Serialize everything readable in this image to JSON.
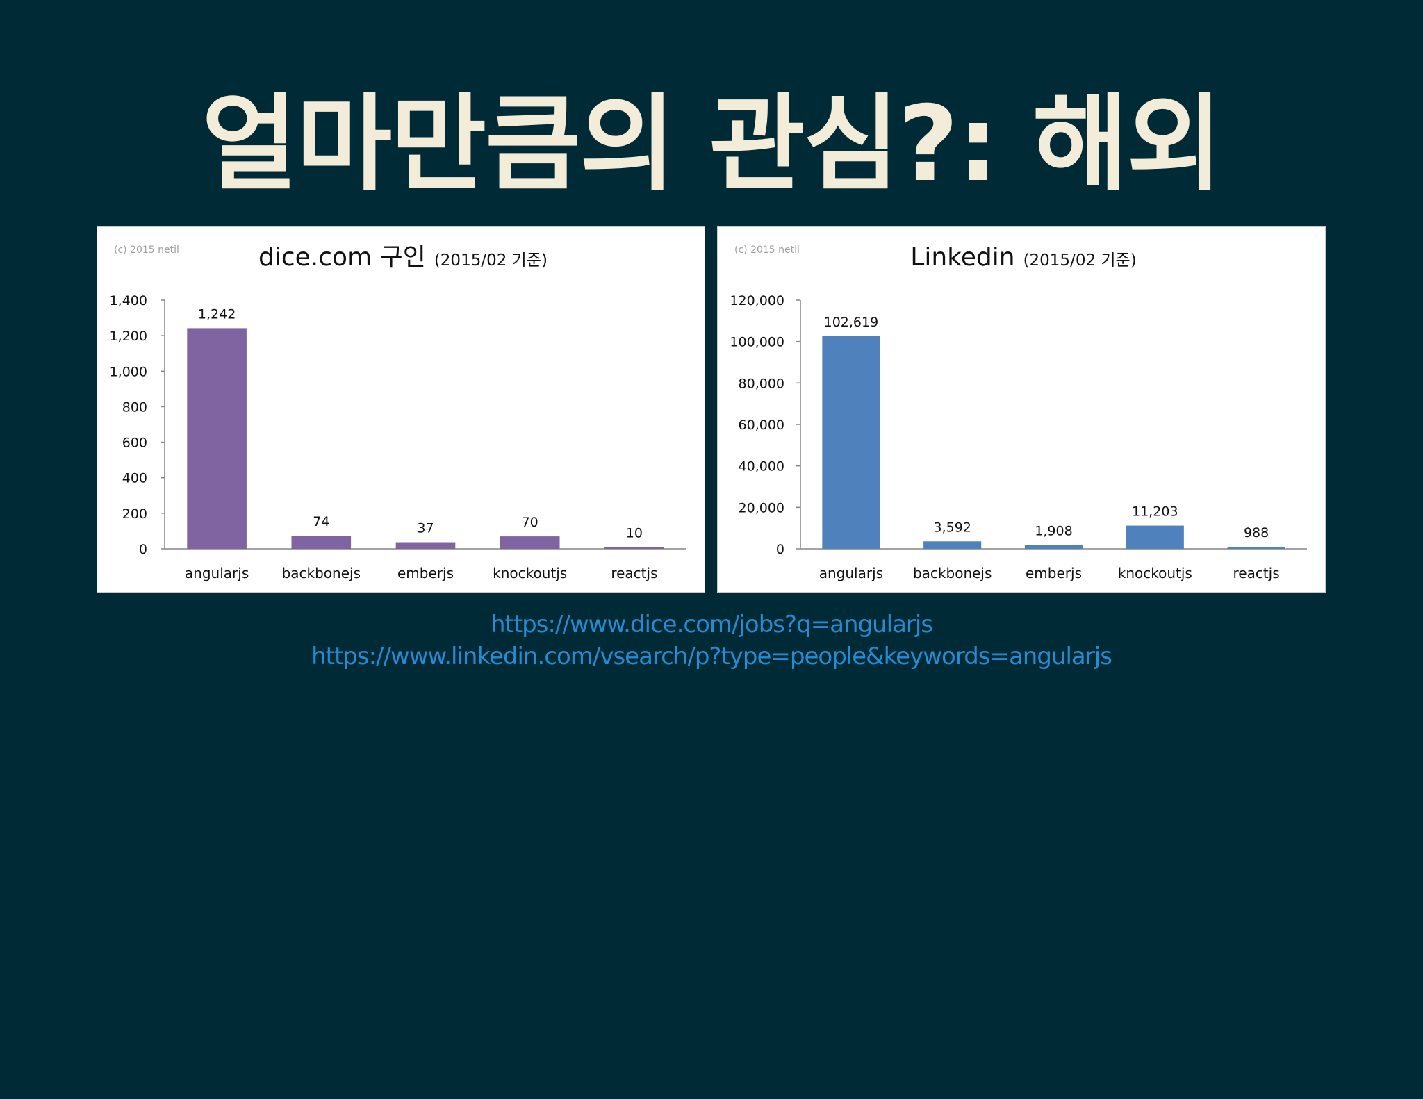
{
  "slide": {
    "title": "얼마만큼의 관심?: 해외"
  },
  "colors": {
    "background": "#002b36",
    "title": "#f3ecd9",
    "link": "#268bd2",
    "dice_bar": "#8064a2",
    "linkedin_bar": "#4f81bd"
  },
  "links": [
    "https://www.dice.com/jobs?q=angularjs",
    "https://www.linkedin.com/vsearch/p?type=people&keywords=angularjs"
  ],
  "chart_data": [
    {
      "type": "bar",
      "copyright": "(c) 2015 netil",
      "title": "dice.com 구인",
      "subtitle": "(2015/02 기준)",
      "xlabel": "",
      "ylabel": "",
      "categories": [
        "angularjs",
        "backbonejs",
        "emberjs",
        "knockoutjs",
        "reactjs"
      ],
      "values": [
        1242,
        74,
        37,
        70,
        10
      ],
      "value_labels": [
        "1,242",
        "74",
        "37",
        "70",
        "10"
      ],
      "ylim": [
        0,
        1400
      ],
      "yticks": [
        0,
        200,
        400,
        600,
        800,
        1000,
        1200,
        1400
      ],
      "ytick_labels": [
        "0",
        "200",
        "400",
        "600",
        "800",
        "1,000",
        "1,200",
        "1,400"
      ],
      "grid": false,
      "legend": "none",
      "color": "#8064a2"
    },
    {
      "type": "bar",
      "copyright": "(c) 2015 netil",
      "title": "Linkedin",
      "subtitle": "(2015/02 기준)",
      "xlabel": "",
      "ylabel": "",
      "categories": [
        "angularjs",
        "backbonejs",
        "emberjs",
        "knockoutjs",
        "reactjs"
      ],
      "values": [
        102619,
        3592,
        1908,
        11203,
        988
      ],
      "value_labels": [
        "102,619",
        "3,592",
        "1,908",
        "11,203",
        "988"
      ],
      "ylim": [
        0,
        120000
      ],
      "yticks": [
        0,
        20000,
        40000,
        60000,
        80000,
        100000,
        120000
      ],
      "ytick_labels": [
        "0",
        "20,000",
        "40,000",
        "60,000",
        "80,000",
        "100,000",
        "120,000"
      ],
      "grid": false,
      "legend": "none",
      "color": "#4f81bd"
    }
  ]
}
